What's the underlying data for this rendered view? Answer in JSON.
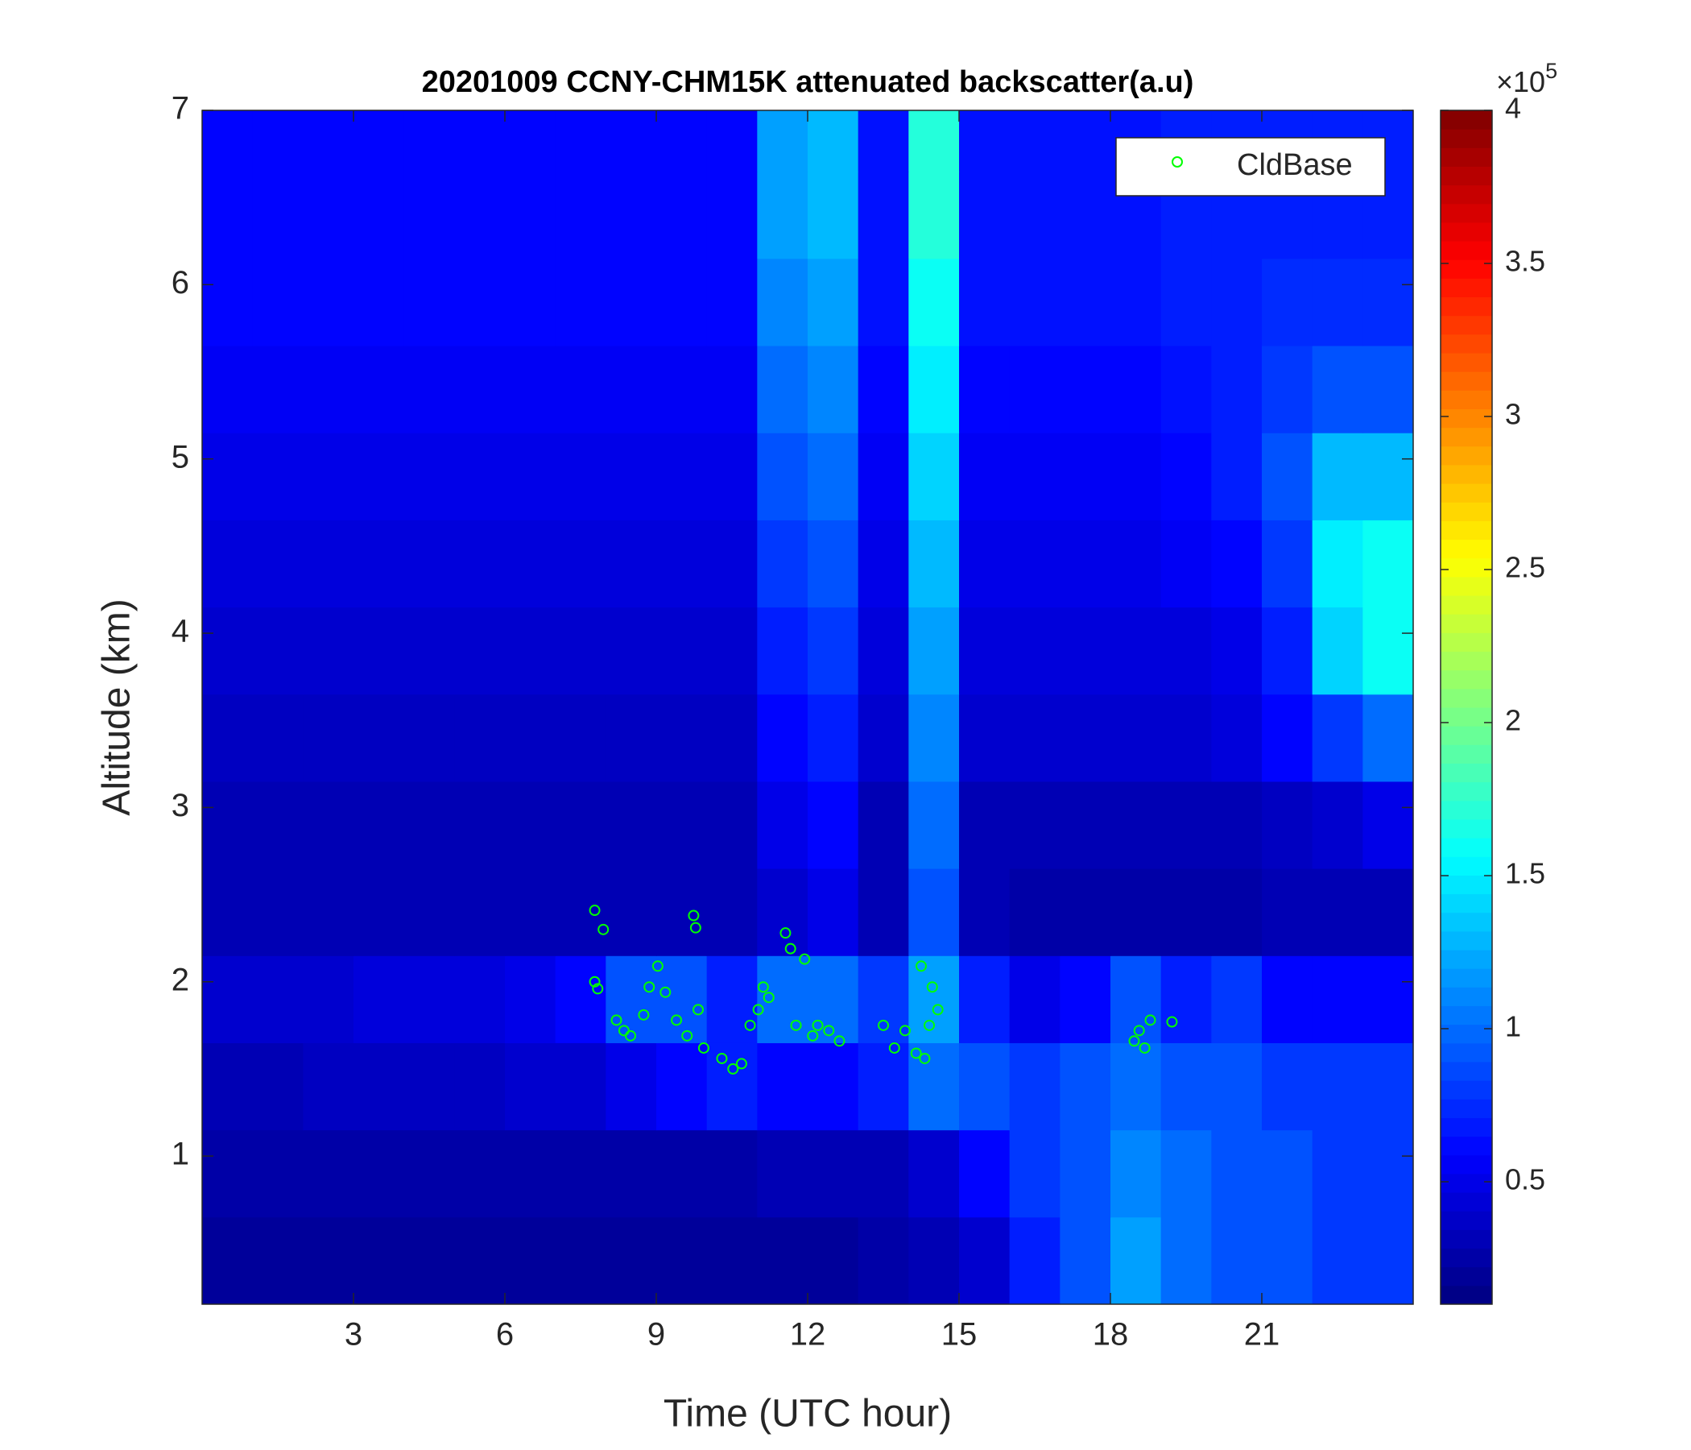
{
  "chart_data": {
    "type": "heatmap",
    "title": "20201009 CCNY-CHM15K attenuated backscatter(a.u)",
    "x_label": "Time (UTC hour)",
    "y_label": "Altitude (km)",
    "xlim": [
      0,
      24
    ],
    "xticks": [
      3,
      6,
      9,
      12,
      15,
      18,
      21
    ],
    "ylim": [
      0.15,
      7
    ],
    "yticks": [
      1,
      2,
      3,
      4,
      5,
      6,
      7
    ],
    "x": [
      0.5,
      1.5,
      2.5,
      3.5,
      4.5,
      5.5,
      6.5,
      7.5,
      8.5,
      9.5,
      10.5,
      11.5,
      12.5,
      13.5,
      14.5,
      15.5,
      16.5,
      17.5,
      18.5,
      19.5,
      20.5,
      21.5,
      22.5,
      23.5
    ],
    "y": [
      0.4,
      0.9,
      1.4,
      1.9,
      2.4,
      2.9,
      3.4,
      3.9,
      4.4,
      4.9,
      5.4,
      5.9,
      6.4,
      6.9
    ],
    "z": [
      [
        0.2,
        0.2,
        0.2,
        0.2,
        0.2,
        0.2,
        0.2,
        0.2,
        0.2,
        0.2,
        0.2,
        0.2,
        0.2,
        0.25,
        0.3,
        0.4,
        0.7,
        0.9,
        1.2,
        1.0,
        0.9,
        0.9,
        0.8,
        0.8
      ],
      [
        0.25,
        0.25,
        0.25,
        0.25,
        0.25,
        0.25,
        0.25,
        0.25,
        0.25,
        0.25,
        0.25,
        0.3,
        0.3,
        0.3,
        0.4,
        0.6,
        0.8,
        0.9,
        1.1,
        1.0,
        0.9,
        0.9,
        0.8,
        0.8
      ],
      [
        0.3,
        0.3,
        0.35,
        0.35,
        0.35,
        0.35,
        0.4,
        0.4,
        0.5,
        0.6,
        0.7,
        0.6,
        0.6,
        0.7,
        1.0,
        0.9,
        0.8,
        0.9,
        1.0,
        0.9,
        0.9,
        0.8,
        0.8,
        0.8
      ],
      [
        0.4,
        0.4,
        0.4,
        0.45,
        0.45,
        0.45,
        0.5,
        0.6,
        0.9,
        0.9,
        0.7,
        1.0,
        1.0,
        0.8,
        1.2,
        0.7,
        0.5,
        0.6,
        0.9,
        0.7,
        0.8,
        0.6,
        0.6,
        0.6
      ],
      [
        0.3,
        0.3,
        0.3,
        0.3,
        0.3,
        0.3,
        0.3,
        0.3,
        0.3,
        0.3,
        0.3,
        0.4,
        0.5,
        0.3,
        0.9,
        0.3,
        0.25,
        0.25,
        0.25,
        0.25,
        0.25,
        0.3,
        0.3,
        0.3
      ],
      [
        0.3,
        0.3,
        0.3,
        0.3,
        0.3,
        0.3,
        0.3,
        0.3,
        0.3,
        0.3,
        0.3,
        0.5,
        0.6,
        0.3,
        1.0,
        0.3,
        0.3,
        0.3,
        0.3,
        0.3,
        0.3,
        0.35,
        0.4,
        0.5
      ],
      [
        0.35,
        0.35,
        0.35,
        0.35,
        0.35,
        0.35,
        0.35,
        0.35,
        0.35,
        0.35,
        0.35,
        0.6,
        0.7,
        0.4,
        1.1,
        0.4,
        0.4,
        0.4,
        0.4,
        0.4,
        0.45,
        0.6,
        0.8,
        1.0
      ],
      [
        0.4,
        0.4,
        0.4,
        0.4,
        0.4,
        0.4,
        0.4,
        0.4,
        0.4,
        0.4,
        0.4,
        0.7,
        0.8,
        0.45,
        1.2,
        0.45,
        0.45,
        0.45,
        0.45,
        0.45,
        0.5,
        0.7,
        1.4,
        1.6
      ],
      [
        0.45,
        0.45,
        0.45,
        0.45,
        0.45,
        0.45,
        0.45,
        0.45,
        0.45,
        0.45,
        0.45,
        0.8,
        0.9,
        0.5,
        1.3,
        0.5,
        0.5,
        0.5,
        0.5,
        0.55,
        0.6,
        0.8,
        1.5,
        1.6
      ],
      [
        0.5,
        0.5,
        0.5,
        0.5,
        0.5,
        0.5,
        0.5,
        0.5,
        0.5,
        0.5,
        0.5,
        0.9,
        1.0,
        0.55,
        1.4,
        0.55,
        0.55,
        0.55,
        0.55,
        0.6,
        0.7,
        0.9,
        1.3,
        1.3
      ],
      [
        0.55,
        0.55,
        0.55,
        0.55,
        0.55,
        0.55,
        0.55,
        0.55,
        0.55,
        0.55,
        0.55,
        1.0,
        1.1,
        0.6,
        1.5,
        0.6,
        0.6,
        0.6,
        0.6,
        0.65,
        0.7,
        0.8,
        0.9,
        0.9
      ],
      [
        0.6,
        0.6,
        0.6,
        0.6,
        0.6,
        0.6,
        0.6,
        0.6,
        0.6,
        0.6,
        0.6,
        1.1,
        1.2,
        0.65,
        1.6,
        0.65,
        0.65,
        0.65,
        0.65,
        0.7,
        0.7,
        0.75,
        0.75,
        0.75
      ],
      [
        0.6,
        0.6,
        0.6,
        0.6,
        0.6,
        0.6,
        0.6,
        0.6,
        0.6,
        0.6,
        0.6,
        1.2,
        1.3,
        0.65,
        1.7,
        0.65,
        0.65,
        0.65,
        0.65,
        0.7,
        0.7,
        0.7,
        0.7,
        0.7
      ],
      [
        0.6,
        0.6,
        0.6,
        0.6,
        0.6,
        0.6,
        0.6,
        0.6,
        0.6,
        0.6,
        0.6,
        1.2,
        1.3,
        0.65,
        1.7,
        0.65,
        0.65,
        0.65,
        0.65,
        0.7,
        0.7,
        0.7,
        0.7,
        0.7
      ]
    ],
    "colormap": "jet",
    "clim": [
      0.1,
      4
    ],
    "cticks": [
      0.5,
      1,
      1.5,
      2,
      2.5,
      3,
      3.5,
      4
    ],
    "colorbar_multiplier": "×10",
    "colorbar_exponent": "5",
    "series": [
      {
        "name": "CldBase",
        "color": "#00ff00",
        "marker": "circle",
        "x": [
          7.78,
          7.95,
          7.78,
          7.84,
          8.21,
          8.36,
          8.49,
          8.75,
          8.86,
          9.03,
          9.18,
          9.4,
          9.61,
          9.74,
          9.78,
          9.83,
          9.94,
          10.3,
          10.52,
          10.69,
          10.86,
          11.02,
          11.12,
          11.23,
          11.56,
          11.66,
          11.77,
          11.94,
          12.1,
          12.2,
          12.42,
          12.63,
          13.5,
          13.72,
          13.93,
          14.15,
          14.25,
          14.32,
          14.41,
          14.47,
          14.58,
          18.47,
          18.57,
          18.68,
          18.79,
          19.22
        ],
        "y": [
          2.41,
          2.3,
          2.0,
          1.96,
          1.78,
          1.72,
          1.69,
          1.81,
          1.97,
          2.09,
          1.94,
          1.78,
          1.69,
          2.38,
          2.31,
          1.84,
          1.62,
          1.56,
          1.5,
          1.53,
          1.75,
          1.84,
          1.97,
          1.91,
          2.28,
          2.19,
          1.75,
          2.13,
          1.69,
          1.75,
          1.72,
          1.66,
          1.75,
          1.62,
          1.72,
          1.59,
          2.09,
          1.56,
          1.75,
          1.97,
          1.84,
          1.66,
          1.72,
          1.62,
          1.78,
          1.77
        ]
      }
    ],
    "legend": "northeast"
  }
}
